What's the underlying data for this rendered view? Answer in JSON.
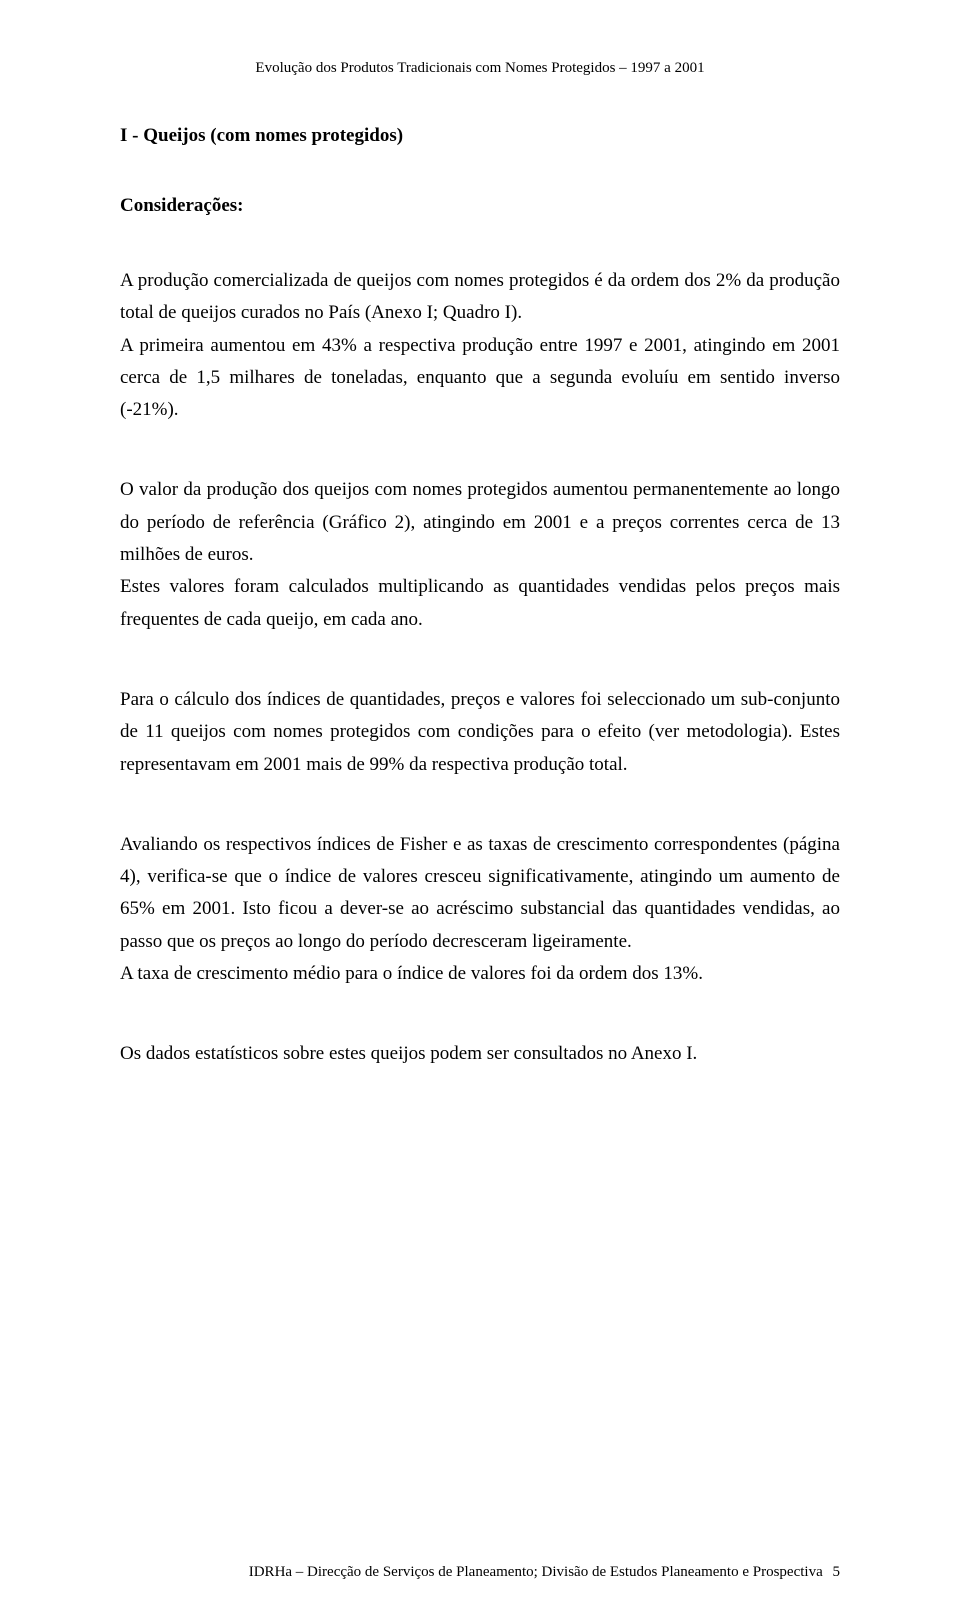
{
  "header": {
    "text": "Evolução dos Produtos Tradicionais com Nomes Protegidos – 1997 a 2001"
  },
  "section_title": "I - Queijos (com nomes protegidos)",
  "subsection_title": "Considerações:",
  "paragraphs": {
    "p1": "A produção comercializada de queijos com nomes protegidos é da ordem dos 2% da produção total de queijos curados no País (Anexo I; Quadro I).",
    "p2": "A primeira aumentou em 43% a respectiva produção entre 1997 e 2001, atingindo em 2001 cerca de 1,5 milhares de toneladas, enquanto que a segunda evoluíu em sentido inverso (-21%).",
    "p3": "O valor da produção dos queijos com nomes protegidos aumentou permanentemente ao longo do período de referência (Gráfico 2), atingindo em 2001 e a preços correntes cerca de 13 milhões de euros.",
    "p4": "Estes valores foram calculados multiplicando as quantidades vendidas pelos preços mais frequentes de cada queijo, em cada ano.",
    "p5": "Para o cálculo dos índices de quantidades, preços e valores foi seleccionado um sub-conjunto de 11 queijos com nomes protegidos com condições para o efeito (ver metodologia). Estes representavam em 2001 mais de 99% da respectiva produção total.",
    "p6": "Avaliando os respectivos índices de Fisher e as taxas de crescimento correspondentes (página 4), verifica-se que o índice de valores cresceu significativamente, atingindo um aumento de 65% em 2001. Isto ficou a dever-se ao acréscimo substancial das quantidades vendidas, ao passo que os preços ao longo do período decresceram ligeiramente.",
    "p7": "A taxa de crescimento médio para o índice de valores foi da ordem dos 13%.",
    "p8": "Os dados estatísticos sobre estes queijos podem ser consultados no Anexo I."
  },
  "footer": {
    "text": "IDRHa – Direcção de Serviços de Planeamento; Divisão de Estudos Planeamento e Prospectiva",
    "page": "5"
  }
}
